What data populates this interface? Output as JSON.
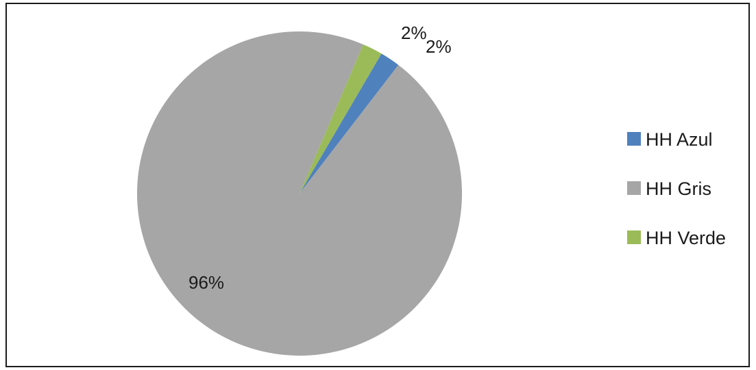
{
  "chart_data": {
    "type": "pie",
    "categories": [
      "HH Azul",
      "HH Gris",
      "HH Verde"
    ],
    "values": [
      2,
      96,
      2
    ],
    "data_labels": [
      "2%",
      "96%",
      "2%"
    ],
    "colors": [
      "#4f81bd",
      "#a6a6a6",
      "#9bbb59"
    ],
    "legend": {
      "placement": "right",
      "entries": [
        "HH Azul",
        "HH Gris",
        "HH Verde"
      ]
    }
  }
}
